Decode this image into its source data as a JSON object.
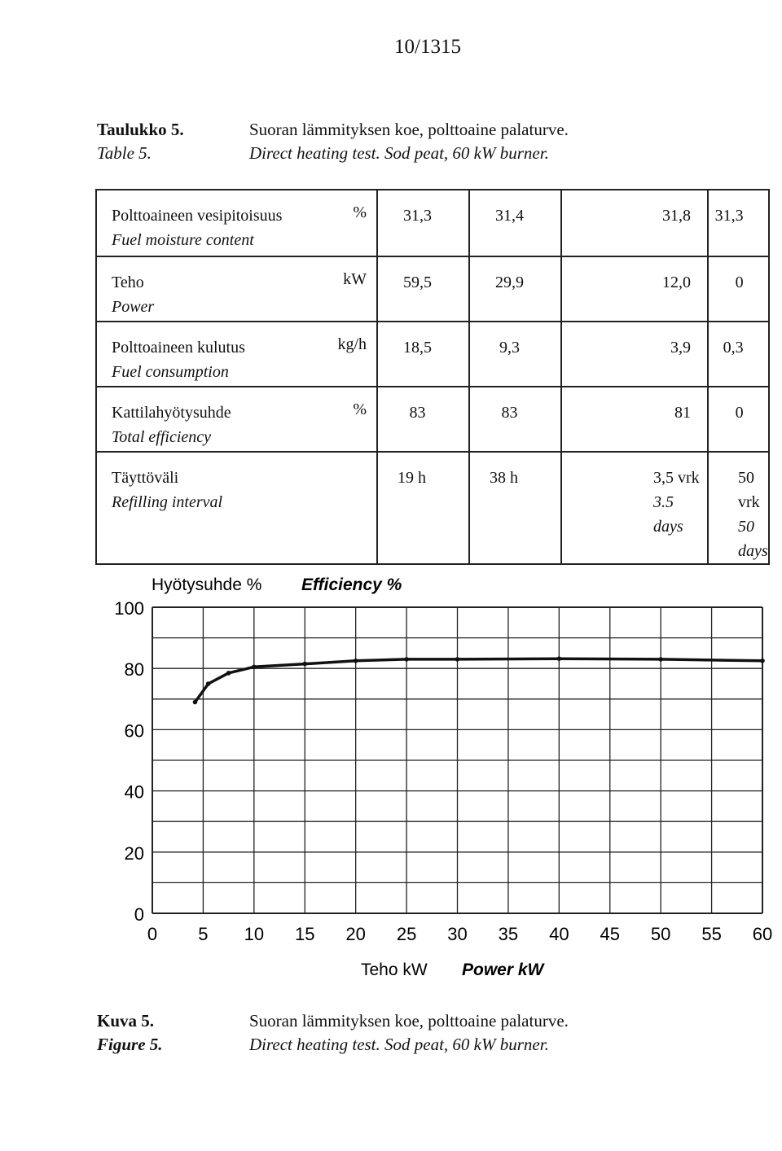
{
  "page_number": "10/1315",
  "table_caption": {
    "label_fi": "Taulukko 5.",
    "label_en": "Table 5.",
    "text_fi": "Suoran lämmityksen koe, polttoaine palaturve.",
    "text_en": "Direct heating test. Sod peat, 60 kW burner."
  },
  "table": {
    "rows": [
      {
        "name_fi": "Polttoaineen vesipitoisuus",
        "name_en": "Fuel moisture content",
        "unit": "%",
        "values": [
          {
            "a": "31,3"
          },
          {
            "a": "31,4"
          },
          {
            "a": "31,8"
          },
          {
            "a": "31,3"
          }
        ]
      },
      {
        "name_fi": "Teho",
        "name_en": "Power",
        "unit": "kW",
        "values": [
          {
            "a": "59,5"
          },
          {
            "a": "29,9"
          },
          {
            "a": "12,0"
          },
          {
            "a": "0"
          }
        ]
      },
      {
        "name_fi": "Polttoaineen kulutus",
        "name_en": "Fuel consumption",
        "unit": "kg/h",
        "values": [
          {
            "a": "18,5"
          },
          {
            "a": "9,3"
          },
          {
            "a": "3,9"
          },
          {
            "a": "0,3"
          }
        ]
      },
      {
        "name_fi": "Kattilahyötysuhde",
        "name_en": "Total efficiency",
        "unit": "%",
        "values": [
          {
            "a": "83"
          },
          {
            "a": "83"
          },
          {
            "a": "81"
          },
          {
            "a": "0"
          }
        ]
      },
      {
        "name_fi": "Täyttöväli",
        "name_en": "Refilling interval",
        "unit": "",
        "values": [
          {
            "a": "19 h",
            "b": ""
          },
          {
            "a": "38 h",
            "b": ""
          },
          {
            "a": "3,5 vrk",
            "b": "3.5 days"
          },
          {
            "a": "50 vrk",
            "b": "50 days"
          }
        ]
      }
    ]
  },
  "chart_data": {
    "type": "line",
    "title_fi": "Hyötysuhde %",
    "title_en": "Efficiency %",
    "xlabel_fi": "Teho kW",
    "xlabel_en": "Power kW",
    "xlim": [
      0,
      60
    ],
    "ylim": [
      0,
      100
    ],
    "xticks": [
      "0",
      "5",
      "10",
      "15",
      "20",
      "25",
      "30",
      "35",
      "40",
      "45",
      "50",
      "55",
      "60"
    ],
    "yticks": [
      "0",
      "20",
      "40",
      "60",
      "80",
      "100"
    ],
    "grid": true,
    "series": [
      {
        "values": [
          {
            "x": 4.2,
            "y": 69
          },
          {
            "x": 5.5,
            "y": 75
          },
          {
            "x": 7.5,
            "y": 78.5
          },
          {
            "x": 10,
            "y": 80.5
          },
          {
            "x": 15,
            "y": 81.5
          },
          {
            "x": 20,
            "y": 82.5
          },
          {
            "x": 25,
            "y": 83
          },
          {
            "x": 30,
            "y": 83
          },
          {
            "x": 40,
            "y": 83.2
          },
          {
            "x": 50,
            "y": 83
          },
          {
            "x": 60,
            "y": 82.5
          }
        ]
      }
    ]
  },
  "figure_caption": {
    "label_fi": "Kuva 5.",
    "label_en": "Figure 5.",
    "text_fi": "Suoran lämmityksen koe, polttoaine palaturve.",
    "text_en": "Direct heating test. Sod peat, 60 kW burner."
  }
}
